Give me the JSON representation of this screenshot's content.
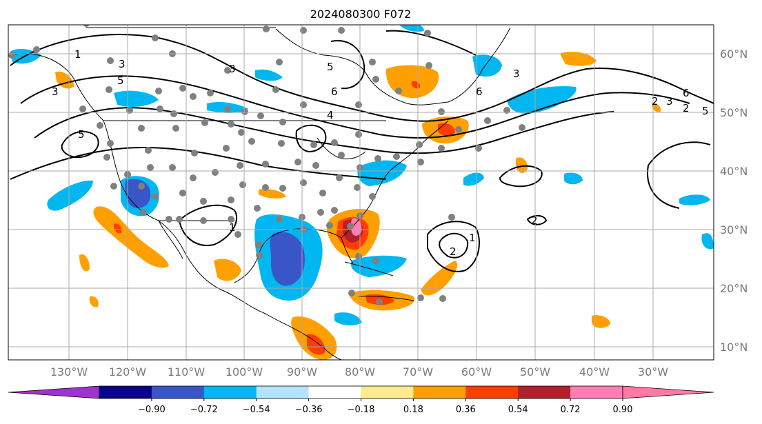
{
  "title": "2024080300 F072",
  "lat_labels": [
    "60°N",
    "50°N",
    "40°N",
    "30°N",
    "20°N",
    "10°N"
  ],
  "lon_labels": [
    "130°W",
    "120°W",
    "110°W",
    "100°W",
    "90°W",
    "80°W",
    "70°W",
    "60°W",
    "50°W",
    "40°W",
    "30°W"
  ],
  "colorbar": {
    "ticks": [
      "−0.90",
      "−0.72",
      "−0.54",
      "−0.36",
      "−0.18",
      "0.18",
      "0.36",
      "0.54",
      "0.72",
      "0.90"
    ],
    "colors": [
      "#0b008a",
      "#3a55c8",
      "#00b7f2",
      "#b3e3ff",
      "#ffffff",
      "#ffe992",
      "#ffa000",
      "#ff3d00",
      "#b2202b",
      "#ff7fb4"
    ],
    "under_color": "#9e33d0",
    "over_color": "#ff79a6"
  },
  "contour_labels": [
    "1",
    "3",
    "5",
    "3",
    "5",
    "6",
    "5",
    "4",
    "6",
    "2",
    "3",
    "5",
    "6",
    "3",
    "2",
    "1",
    "1",
    "2",
    "3",
    "2"
  ]
}
